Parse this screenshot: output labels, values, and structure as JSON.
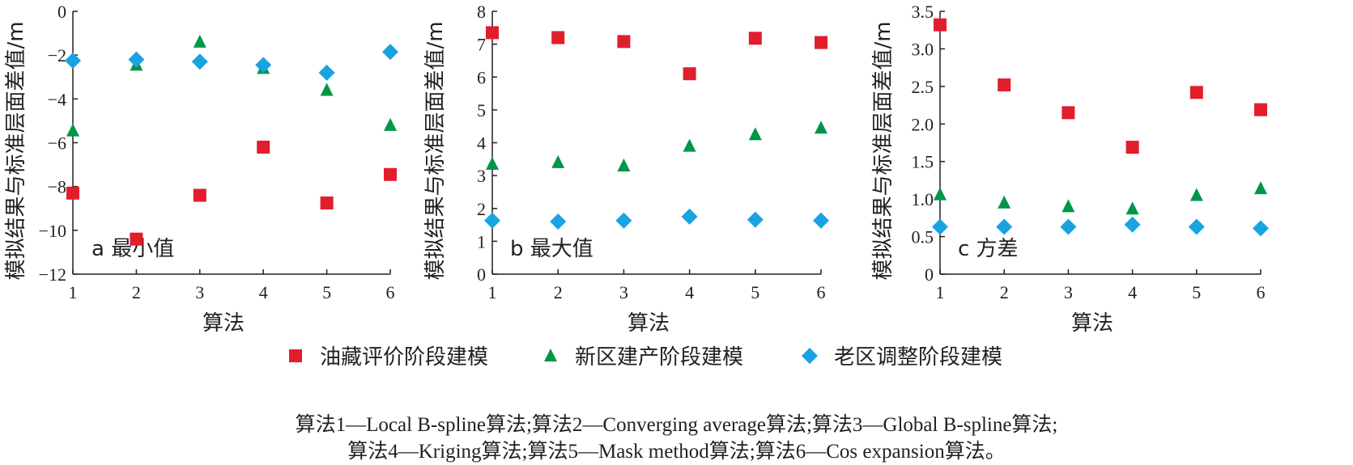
{
  "chart_data": [
    {
      "type": "scatter",
      "panel_label": "a 最小值",
      "xlabel": "算法",
      "ylabel": "模拟结果与标准层面差值/m",
      "xlim": [
        1,
        6
      ],
      "ylim": [
        -12,
        0
      ],
      "xticks": [
        "1",
        "2",
        "3",
        "4",
        "5",
        "6"
      ],
      "yticks": [
        "−12",
        "−10",
        "−8",
        "−6",
        "−4",
        "−2",
        "0"
      ],
      "ytick_values": [
        -12,
        -10,
        -8,
        -6,
        -4,
        -2,
        0
      ],
      "x": [
        1,
        2,
        3,
        4,
        5,
        6
      ],
      "series": [
        {
          "name": "油藏评价阶段建模",
          "values": [
            -8.3,
            -10.4,
            -8.4,
            -6.2,
            -8.75,
            -7.45
          ]
        },
        {
          "name": "新区建产阶段建模",
          "values": [
            -5.45,
            -2.45,
            -1.4,
            -2.6,
            -3.6,
            -5.2
          ]
        },
        {
          "name": "老区调整阶段建模",
          "values": [
            -2.25,
            -2.2,
            -2.3,
            -2.45,
            -2.8,
            -1.85
          ]
        }
      ]
    },
    {
      "type": "scatter",
      "panel_label": "b 最大值",
      "xlabel": "算法",
      "ylabel": "模拟结果与标准层面差值/m",
      "xlim": [
        1,
        6
      ],
      "ylim": [
        0,
        8
      ],
      "xticks": [
        "1",
        "2",
        "3",
        "4",
        "5",
        "6"
      ],
      "yticks": [
        "0",
        "1",
        "2",
        "3",
        "4",
        "5",
        "6",
        "7",
        "8"
      ],
      "ytick_values": [
        0,
        1,
        2,
        3,
        4,
        5,
        6,
        7,
        8
      ],
      "x": [
        1,
        2,
        3,
        4,
        5,
        6
      ],
      "series": [
        {
          "name": "油藏评价阶段建模",
          "values": [
            7.35,
            7.2,
            7.08,
            6.1,
            7.18,
            7.05
          ]
        },
        {
          "name": "新区建产阶段建模",
          "values": [
            3.35,
            3.4,
            3.3,
            3.9,
            4.25,
            4.45
          ]
        },
        {
          "name": "老区调整阶段建模",
          "values": [
            1.63,
            1.6,
            1.63,
            1.75,
            1.66,
            1.63
          ]
        }
      ]
    },
    {
      "type": "scatter",
      "panel_label": "c 方差",
      "xlabel": "算法",
      "ylabel": "模拟结果与标准层面差值/m",
      "xlim": [
        1,
        6
      ],
      "ylim": [
        0,
        3.5
      ],
      "xticks": [
        "1",
        "2",
        "3",
        "4",
        "5",
        "6"
      ],
      "yticks": [
        "0",
        "0.5",
        "1.0",
        "1.5",
        "2.0",
        "2.5",
        "3.0",
        "3.5"
      ],
      "ytick_values": [
        0,
        0.5,
        1.0,
        1.5,
        2.0,
        2.5,
        3.0,
        3.5
      ],
      "x": [
        1,
        2,
        3,
        4,
        5,
        6
      ],
      "series": [
        {
          "name": "油藏评价阶段建模",
          "values": [
            3.32,
            2.52,
            2.15,
            1.69,
            2.42,
            2.19
          ]
        },
        {
          "name": "新区建产阶段建模",
          "values": [
            1.06,
            0.95,
            0.9,
            0.87,
            1.05,
            1.14
          ]
        },
        {
          "name": "老区调整阶段建模",
          "values": [
            0.63,
            0.63,
            0.63,
            0.66,
            0.63,
            0.61
          ]
        }
      ]
    }
  ],
  "legend": [
    {
      "label": "油藏评价阶段建模",
      "marker": "square",
      "color": "#e31e2c"
    },
    {
      "label": "新区建产阶段建模",
      "marker": "triangle",
      "color": "#00964a"
    },
    {
      "label": "老区调整阶段建模",
      "marker": "diamond",
      "color": "#1aa3e3"
    }
  ],
  "caption": {
    "line1": "算法1—Local B-spline算法;算法2—Converging average算法;算法3—Global B-spline算法;",
    "line2": "算法4—Kriging算法;算法5—Mask method算法;算法6—Cos expansion算法。"
  }
}
